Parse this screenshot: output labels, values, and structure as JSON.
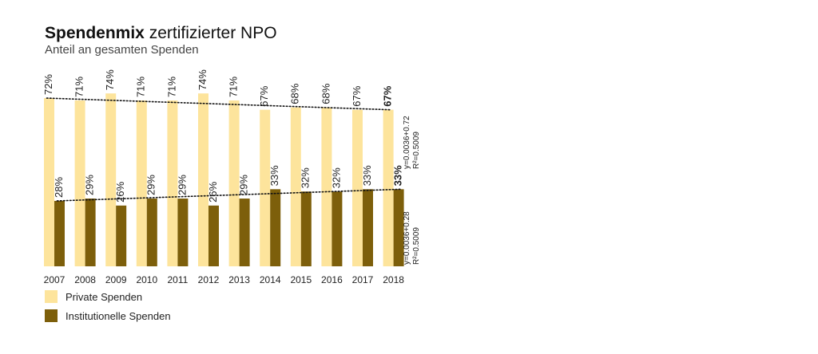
{
  "chart_data": {
    "type": "bar",
    "title_bold": "Spendenmix",
    "title_rest": " zertifizierter NPO",
    "subtitle": "Anteil an gesamten Spenden",
    "categories": [
      "2007",
      "2008",
      "2009",
      "2010",
      "2011",
      "2012",
      "2013",
      "2014",
      "2015",
      "2016",
      "2017",
      "2018"
    ],
    "ylim": [
      0,
      80
    ],
    "series": [
      {
        "name": "Private Spenden",
        "color": "#fde49c",
        "values": [
          72,
          71,
          74,
          71,
          71,
          74,
          71,
          67,
          68,
          68,
          67,
          67
        ],
        "labels": [
          "72%",
          "71%",
          "74%",
          "71%",
          "71%",
          "74%",
          "71%",
          "67%",
          "68%",
          "68%",
          "67%",
          "67%"
        ]
      },
      {
        "name": "Institutionelle Spenden",
        "color": "#7d5f0b",
        "values": [
          28,
          29,
          26,
          29,
          29,
          26,
          29,
          33,
          32,
          32,
          33,
          33
        ],
        "labels": [
          "28%",
          "29%",
          "26%",
          "29%",
          "29%",
          "26%",
          "29%",
          "33%",
          "32%",
          "32%",
          "33%",
          "33%"
        ]
      }
    ],
    "trendlines": [
      {
        "series": 0,
        "start": 72,
        "end": 67,
        "equation": "y=0.0036+0.72",
        "r2": "R²=0.5009"
      },
      {
        "series": 1,
        "start": 28,
        "end": 33,
        "equation": "y=0.0036+0.28",
        "r2": "R²=0.5009"
      }
    ],
    "legend_placement": "bottom-left",
    "grid": false
  }
}
